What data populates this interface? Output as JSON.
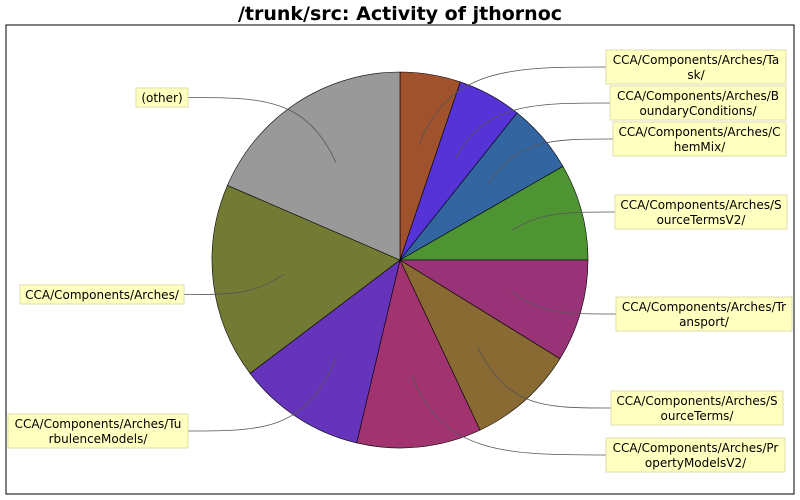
{
  "chart_data": {
    "type": "pie",
    "title": "/trunk/src: Activity of jthornoc",
    "start_angle_deg": 90,
    "direction": "clockwise",
    "slices": [
      {
        "label_lines": [
          "CCA/Components/Arches/Ta",
          "sk/"
        ],
        "value": 5.2,
        "color": "#a0522d"
      },
      {
        "label_lines": [
          "CCA/Components/Arches/B",
          "oundaryConditions/"
        ],
        "value": 5.5,
        "color": "#5533d6"
      },
      {
        "label_lines": [
          "CCA/Components/Arches/C",
          "hemMix/"
        ],
        "value": 6.0,
        "color": "#3366a0"
      },
      {
        "label_lines": [
          "CCA/Components/Arches/S",
          "ourceTermsV2/"
        ],
        "value": 8.3,
        "color": "#4f9433"
      },
      {
        "label_lines": [
          "CCA/Components/Arches/Tr",
          "ansport/"
        ],
        "value": 8.8,
        "color": "#993377"
      },
      {
        "label_lines": [
          "CCA/Components/Arches/S",
          "ourceTerms/"
        ],
        "value": 9.2,
        "color": "#896a33"
      },
      {
        "label_lines": [
          "CCA/Components/Arches/Pr",
          "opertyModelsV2/"
        ],
        "value": 10.7,
        "color": "#a03370"
      },
      {
        "label_lines": [
          "CCA/Components/Arches/Tu",
          "rbulenceModels/"
        ],
        "value": 11.0,
        "color": "#6633bb"
      },
      {
        "label_lines": [
          "CCA/Components/Arches/"
        ],
        "value": 16.8,
        "color": "#737a33"
      },
      {
        "label_lines": [
          "(other)"
        ],
        "value": 18.5,
        "color": "#999999"
      }
    ]
  }
}
